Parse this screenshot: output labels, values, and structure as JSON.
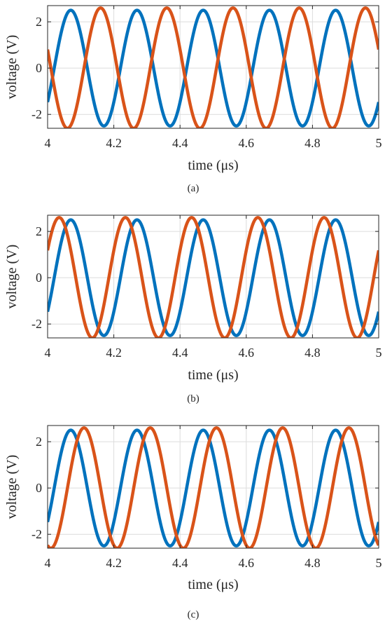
{
  "chart_data": [
    {
      "type": "line",
      "caption": "(a)",
      "xlabel": "time (μs)",
      "ylabel": "voltage (V)",
      "xlim": [
        4,
        5
      ],
      "ylim": [
        -2.6,
        2.7
      ],
      "xticks": [
        4,
        4.2,
        4.4,
        4.6,
        4.8,
        5
      ],
      "xtick_labels": [
        "4",
        "4.2",
        "4.4",
        "4.6",
        "4.8",
        "5"
      ],
      "yticks": [
        -2,
        0,
        2
      ],
      "ytick_labels": [
        "-2",
        "0",
        "2"
      ],
      "grid": true,
      "series": [
        {
          "color": "#0072BD",
          "amplitude": 2.5,
          "period": 0.2,
          "peak_time": 4.07
        },
        {
          "color": "#D95319",
          "amplitude": 2.6,
          "period": 0.2,
          "peak_time": 4.16
        }
      ]
    },
    {
      "type": "line",
      "caption": "(b)",
      "xlabel": "time (μs)",
      "ylabel": "voltage (V)",
      "xlim": [
        4,
        5
      ],
      "ylim": [
        -2.6,
        2.7
      ],
      "xticks": [
        4,
        4.2,
        4.4,
        4.6,
        4.8,
        5
      ],
      "xtick_labels": [
        "4",
        "4.2",
        "4.4",
        "4.6",
        "4.8",
        "5"
      ],
      "yticks": [
        -2,
        0,
        2
      ],
      "ytick_labels": [
        "-2",
        "0",
        "2"
      ],
      "grid": true,
      "series": [
        {
          "color": "#0072BD",
          "amplitude": 2.5,
          "period": 0.2,
          "peak_time": 4.07
        },
        {
          "color": "#D95319",
          "amplitude": 2.6,
          "period": 0.2,
          "peak_time": 4.035
        }
      ]
    },
    {
      "type": "line",
      "caption": "(c)",
      "xlabel": "time (μs)",
      "ylabel": "voltage (V)",
      "xlim": [
        4,
        5
      ],
      "ylim": [
        -2.6,
        2.7
      ],
      "xticks": [
        4,
        4.2,
        4.4,
        4.6,
        4.8,
        5
      ],
      "xtick_labels": [
        "4",
        "4.2",
        "4.4",
        "4.6",
        "4.8",
        "5"
      ],
      "yticks": [
        -2,
        0,
        2
      ],
      "ytick_labels": [
        "-2",
        "0",
        "2"
      ],
      "grid": true,
      "series": [
        {
          "color": "#0072BD",
          "amplitude": 2.5,
          "period": 0.2,
          "peak_time": 4.07
        },
        {
          "color": "#D95319",
          "amplitude": 2.6,
          "period": 0.2,
          "peak_time": 4.11
        }
      ]
    }
  ]
}
